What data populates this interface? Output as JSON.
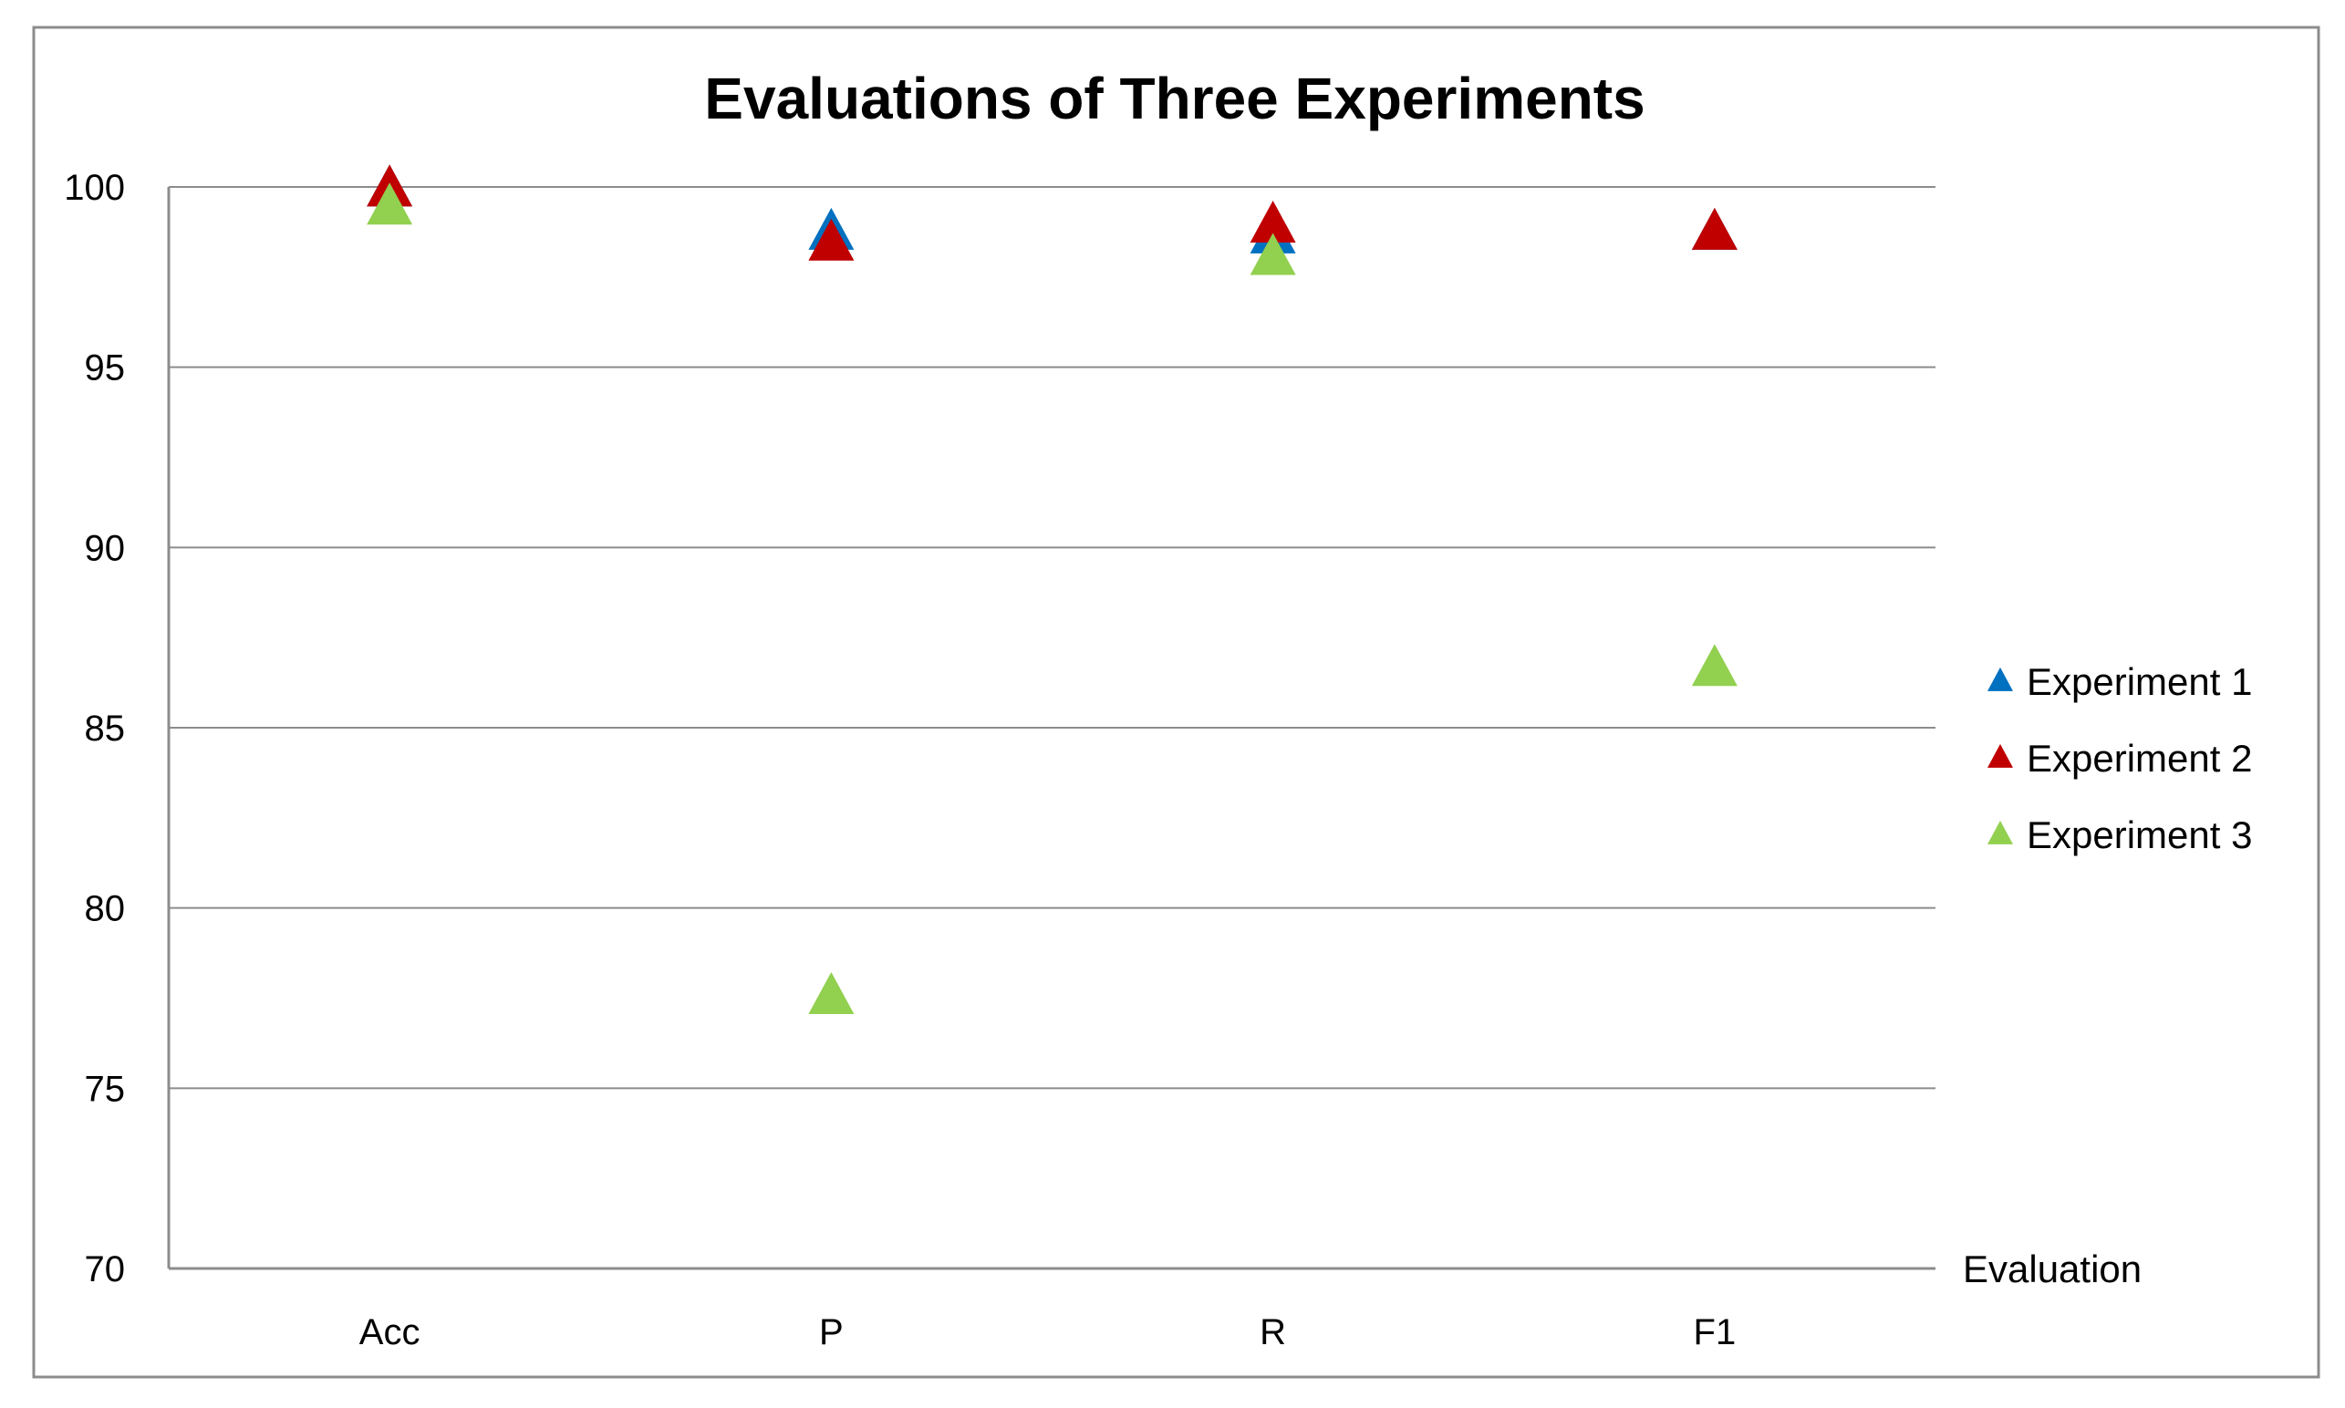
{
  "chart_data": {
    "type": "scatter",
    "title": "Evaluations of Three Experiments",
    "xlabel": "Evaluation",
    "ylabel": "",
    "categories": [
      "Acc",
      "P",
      "R",
      "F1"
    ],
    "ylim": [
      70,
      100
    ],
    "yticks": [
      70,
      75,
      80,
      85,
      90,
      95,
      100
    ],
    "grid": true,
    "legend_position": "right",
    "marker": "triangle",
    "series": [
      {
        "name": "Experiment 1",
        "color": "#0070C0",
        "values": [
          99.9,
          98.7,
          98.6,
          98.7
        ]
      },
      {
        "name": "Experiment 2",
        "color": "#C00000",
        "values": [
          99.9,
          98.4,
          98.9,
          98.7
        ]
      },
      {
        "name": "Experiment 3",
        "color": "#92D050",
        "values": [
          99.4,
          77.5,
          98.0,
          86.6
        ]
      }
    ]
  }
}
